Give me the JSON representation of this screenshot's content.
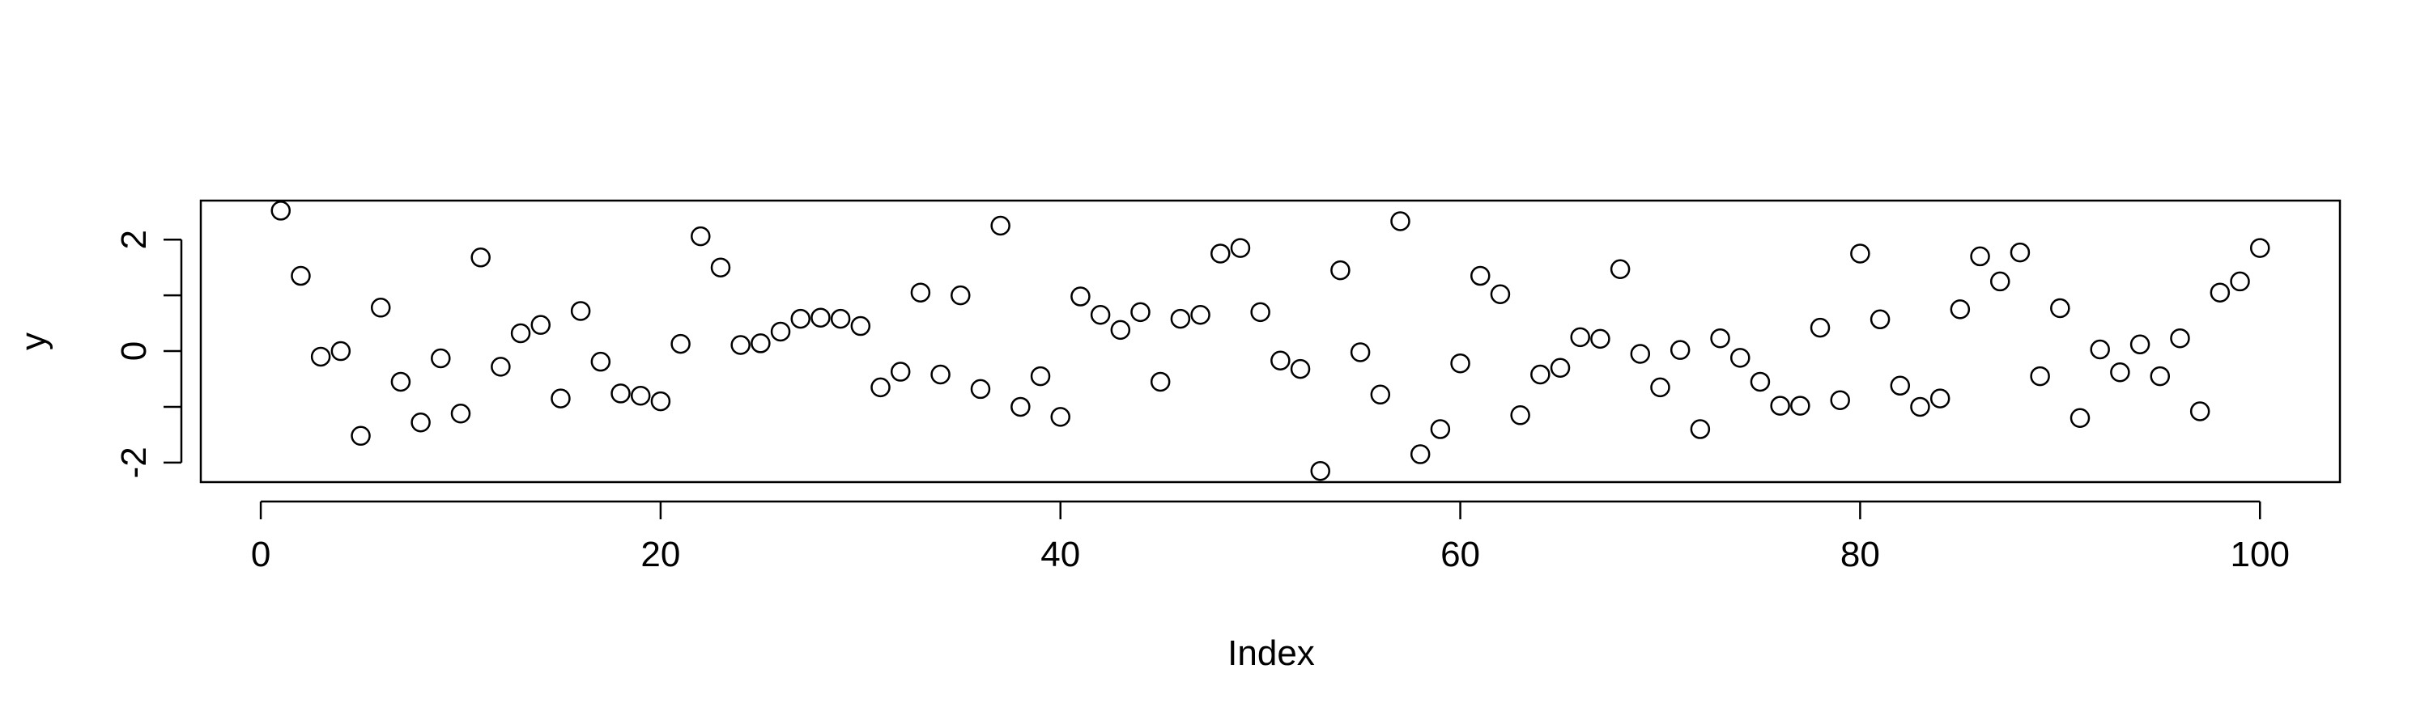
{
  "chart_data": {
    "type": "scatter",
    "title": "",
    "xlabel": "Index",
    "ylabel": "y",
    "xlim": [
      -3,
      104
    ],
    "ylim": [
      -2.35,
      2.7
    ],
    "x_ticks": [
      0,
      20,
      40,
      60,
      80,
      100
    ],
    "y_ticks": [
      -2,
      -1,
      0,
      1,
      2
    ],
    "y_tick_labels": [
      "-2",
      "0",
      "2"
    ],
    "grid": false,
    "legend": "none",
    "marker": "open-circle",
    "color": "#000000",
    "x": [
      1,
      2,
      3,
      4,
      5,
      6,
      7,
      8,
      9,
      10,
      11,
      12,
      13,
      14,
      15,
      16,
      17,
      18,
      19,
      20,
      21,
      22,
      23,
      24,
      25,
      26,
      27,
      28,
      29,
      30,
      31,
      32,
      33,
      34,
      35,
      36,
      37,
      38,
      39,
      40,
      41,
      42,
      43,
      44,
      45,
      46,
      47,
      48,
      49,
      50,
      51,
      52,
      53,
      54,
      55,
      56,
      57,
      58,
      59,
      60,
      61,
      62,
      63,
      64,
      65,
      66,
      67,
      68,
      69,
      70,
      71,
      72,
      73,
      74,
      75,
      76,
      77,
      78,
      79,
      80,
      81,
      82,
      83,
      84,
      85,
      86,
      87,
      88,
      89,
      90,
      91,
      92,
      93,
      94,
      95,
      96,
      97,
      98,
      99,
      100
    ],
    "y": [
      2.52,
      1.35,
      -0.1,
      0.0,
      -1.52,
      0.78,
      -0.55,
      -1.28,
      -0.13,
      -1.12,
      1.68,
      -0.28,
      0.32,
      0.47,
      -0.85,
      0.72,
      -0.19,
      -0.76,
      -0.8,
      -0.9,
      0.13,
      2.06,
      1.5,
      0.11,
      0.14,
      0.35,
      0.58,
      0.6,
      0.58,
      0.45,
      -0.65,
      -0.37,
      1.05,
      -0.42,
      1.0,
      -0.68,
      2.25,
      -1.0,
      -0.45,
      -1.18,
      0.98,
      0.65,
      0.38,
      0.7,
      -0.55,
      0.58,
      0.65,
      1.75,
      1.85,
      0.7,
      -0.17,
      -0.32,
      -2.15,
      1.45,
      -0.02,
      -0.78,
      2.33,
      -1.85,
      -1.4,
      -0.22,
      1.35,
      1.02,
      -1.15,
      -0.42,
      -0.3,
      0.25,
      0.22,
      1.47,
      -0.05,
      -0.65,
      0.02,
      -1.4,
      0.23,
      -0.12,
      -0.55,
      -0.98,
      -0.98,
      0.42,
      -0.88,
      1.75,
      0.57,
      -0.62,
      -1.0,
      -0.85,
      0.75,
      1.7,
      1.25,
      1.77,
      -0.45,
      0.77,
      -1.2,
      0.03,
      -0.38,
      0.12,
      -0.45,
      0.23,
      -1.08,
      1.05,
      1.25,
      1.85
    ]
  }
}
